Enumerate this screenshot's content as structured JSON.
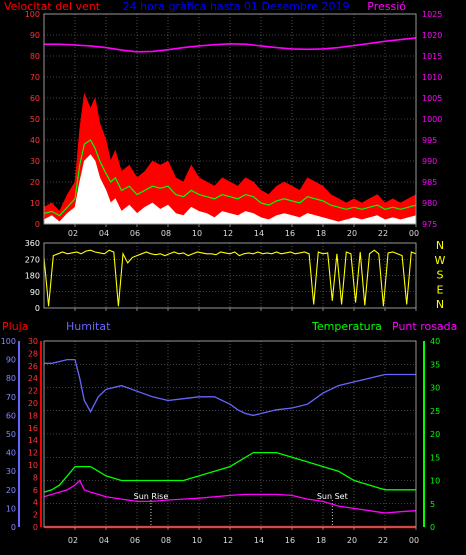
{
  "colors": {
    "wind_gust": "#ff0000",
    "wind_avg": "#00ff00",
    "wind_speed": "#ffffff",
    "pressure": "#ff00ff",
    "wind_dir": "#ffff00",
    "rain": "#ff0000",
    "humidity": "#6666ff",
    "temperature": "#00ff00",
    "dewpoint": "#ff00ff",
    "grid": "#808080",
    "title": "#0000ff"
  },
  "chart_data": [
    {
      "type": "line",
      "title": "24 hora gràfica hasta 01 Desembre 2019",
      "ylabel_left": "Velocitat del vent",
      "ylabel_right": "Pressió",
      "x_ticks": [
        "02",
        "04",
        "06",
        "08",
        "10",
        "12",
        "14",
        "16",
        "18",
        "20",
        "22",
        "00"
      ],
      "x_range": [
        0,
        24
      ],
      "y_left_ticks": [
        "0",
        "10",
        "20",
        "30",
        "40",
        "50",
        "60",
        "70",
        "80",
        "90",
        "100"
      ],
      "y_left_range": [
        0,
        100
      ],
      "y_right_ticks": [
        "975",
        "980",
        "985",
        "990",
        "995",
        "1000",
        "1005",
        "1010",
        "1015",
        "1020",
        "1025"
      ],
      "y_right_range": [
        975,
        1025
      ],
      "series": [
        {
          "key": "gust",
          "axis": "left",
          "x": [
            0,
            0.5,
            1,
            1.5,
            2,
            2.3,
            2.6,
            3,
            3.3,
            3.6,
            4,
            4.3,
            4.6,
            5,
            5.5,
            6,
            6.5,
            7,
            7.5,
            8,
            8.5,
            9,
            9.5,
            10,
            10.5,
            11,
            11.5,
            12,
            12.5,
            13,
            13.5,
            14,
            14.5,
            15,
            15.5,
            16,
            16.5,
            17,
            17.5,
            18,
            18.5,
            19,
            19.5,
            20,
            20.5,
            21,
            21.5,
            22,
            22.5,
            23,
            23.5,
            24
          ],
          "values": [
            8,
            10,
            6,
            14,
            20,
            45,
            62,
            55,
            60,
            48,
            40,
            30,
            35,
            25,
            28,
            22,
            25,
            30,
            28,
            30,
            22,
            20,
            28,
            22,
            20,
            18,
            22,
            20,
            18,
            22,
            20,
            16,
            14,
            18,
            20,
            18,
            16,
            22,
            20,
            18,
            14,
            12,
            10,
            12,
            10,
            12,
            14,
            10,
            12,
            10,
            12,
            14
          ]
        },
        {
          "key": "average",
          "axis": "left",
          "x": [
            0,
            0.5,
            1,
            1.5,
            2,
            2.3,
            2.6,
            3,
            3.3,
            3.6,
            4,
            4.3,
            4.6,
            5,
            5.5,
            6,
            6.5,
            7,
            7.5,
            8,
            8.5,
            9,
            9.5,
            10,
            10.5,
            11,
            11.5,
            12,
            12.5,
            13,
            13.5,
            14,
            14.5,
            15,
            15.5,
            16,
            16.5,
            17,
            17.5,
            18,
            18.5,
            19,
            19.5,
            20,
            20.5,
            21,
            21.5,
            22,
            22.5,
            23,
            23.5,
            24
          ],
          "values": [
            5,
            6,
            4,
            8,
            12,
            28,
            38,
            40,
            36,
            30,
            24,
            20,
            22,
            16,
            18,
            14,
            16,
            18,
            17,
            18,
            14,
            13,
            16,
            14,
            13,
            12,
            14,
            13,
            12,
            14,
            13,
            10,
            9,
            11,
            12,
            11,
            10,
            13,
            12,
            11,
            9,
            8,
            7,
            8,
            7,
            8,
            9,
            7,
            8,
            7,
            8,
            9
          ]
        },
        {
          "key": "speed",
          "axis": "left",
          "x": [
            0,
            0.5,
            1,
            1.5,
            2,
            2.3,
            2.6,
            3,
            3.3,
            3.6,
            4,
            4.3,
            4.6,
            5,
            5.5,
            6,
            6.5,
            7,
            7.5,
            8,
            8.5,
            9,
            9.5,
            10,
            10.5,
            11,
            11.5,
            12,
            12.5,
            13,
            13.5,
            14,
            14.5,
            15,
            15.5,
            16,
            16.5,
            17,
            17.5,
            18,
            18.5,
            19,
            19.5,
            20,
            20.5,
            21,
            21.5,
            22,
            22.5,
            23,
            23.5,
            24
          ],
          "values": [
            2,
            4,
            1,
            5,
            8,
            20,
            30,
            33,
            30,
            22,
            16,
            10,
            12,
            6,
            9,
            5,
            8,
            10,
            7,
            9,
            5,
            4,
            8,
            6,
            5,
            3,
            6,
            5,
            4,
            6,
            5,
            3,
            2,
            4,
            5,
            4,
            3,
            5,
            4,
            3,
            2,
            1,
            2,
            3,
            2,
            3,
            4,
            2,
            3,
            2,
            3,
            4
          ]
        },
        {
          "key": "pressure",
          "axis": "right",
          "x": [
            0,
            1,
            2,
            3,
            4,
            5,
            6,
            7,
            8,
            9,
            10,
            11,
            12,
            13,
            14,
            15,
            16,
            17,
            18,
            19,
            20,
            21,
            22,
            23,
            24
          ],
          "values": [
            1017.8,
            1017.8,
            1017.6,
            1017.4,
            1017.0,
            1016.4,
            1016.0,
            1016.1,
            1016.5,
            1017.0,
            1017.4,
            1017.7,
            1017.9,
            1017.8,
            1017.4,
            1017.0,
            1016.7,
            1016.6,
            1016.7,
            1017.0,
            1017.5,
            1018.0,
            1018.5,
            1018.9,
            1019.3
          ]
        }
      ]
    },
    {
      "type": "scatter",
      "y_ticks": [
        "360",
        "270",
        "180",
        "90",
        "0"
      ],
      "y_range": [
        0,
        360
      ],
      "compass_labels": [
        "N",
        "W",
        "S",
        "E",
        "N"
      ],
      "x_ticks": [
        "02",
        "04",
        "06",
        "08",
        "10",
        "12",
        "14",
        "16",
        "18",
        "20",
        "22",
        "00"
      ],
      "x_range": [
        0,
        24
      ],
      "series": [
        {
          "key": "direction",
          "x": [
            0,
            0.3,
            0.6,
            0.9,
            1.2,
            1.5,
            1.8,
            2.1,
            2.4,
            2.7,
            3.0,
            3.3,
            3.6,
            3.9,
            4.2,
            4.5,
            4.8,
            5.1,
            5.4,
            5.7,
            6.0,
            6.3,
            6.6,
            6.9,
            7.2,
            7.5,
            7.8,
            8.1,
            8.4,
            8.7,
            9.0,
            9.3,
            9.6,
            9.9,
            10.2,
            10.5,
            10.8,
            11.1,
            11.4,
            11.7,
            12.0,
            12.3,
            12.6,
            12.9,
            13.2,
            13.5,
            13.8,
            14.1,
            14.4,
            14.7,
            15.0,
            15.3,
            15.6,
            15.9,
            16.2,
            16.5,
            16.8,
            17.1,
            17.4,
            17.7,
            18.0,
            18.3,
            18.6,
            18.9,
            19.2,
            19.5,
            19.8,
            20.1,
            20.4,
            20.7,
            21.0,
            21.3,
            21.6,
            21.9,
            22.2,
            22.5,
            22.8,
            23.1,
            23.4,
            23.7,
            24.0
          ],
          "values": [
            280,
            10,
            290,
            300,
            310,
            300,
            305,
            310,
            300,
            315,
            320,
            310,
            305,
            300,
            320,
            310,
            10,
            300,
            250,
            280,
            290,
            300,
            310,
            300,
            295,
            300,
            290,
            300,
            310,
            300,
            305,
            290,
            300,
            310,
            305,
            300,
            300,
            295,
            310,
            305,
            300,
            310,
            290,
            300,
            305,
            300,
            310,
            300,
            305,
            300,
            310,
            300,
            305,
            310,
            300,
            305,
            310,
            300,
            20,
            310,
            300,
            305,
            40,
            300,
            20,
            310,
            300,
            30,
            310,
            15,
            300,
            320,
            300,
            10,
            305,
            310,
            300,
            290,
            20,
            310,
            300
          ]
        }
      ]
    },
    {
      "type": "line",
      "ylabel_rain": "Pluja",
      "ylabel_humidity": "Humitat",
      "ylabel_temperature": "Temperatura",
      "ylabel_dewpoint": "Punt rosada",
      "x_ticks": [
        "02",
        "04",
        "06",
        "08",
        "10",
        "12",
        "14",
        "16",
        "18",
        "20",
        "22",
        "00"
      ],
      "x_range": [
        0,
        24
      ],
      "y_humidity_ticks": [
        "0",
        "10",
        "20",
        "30",
        "40",
        "50",
        "60",
        "70",
        "80",
        "90",
        "100"
      ],
      "y_humidity_range": [
        0,
        100
      ],
      "y_rain_ticks": [
        "0",
        "2",
        "4",
        "6",
        "8",
        "10",
        "12",
        "14",
        "16",
        "18",
        "20",
        "22",
        "24",
        "26",
        "28",
        "30"
      ],
      "y_rain_range": [
        0,
        30
      ],
      "y_temp_ticks": [
        "0",
        "5",
        "10",
        "15",
        "20",
        "25",
        "30",
        "35",
        "40"
      ],
      "y_temp_range": [
        0,
        40
      ],
      "annotations": [
        {
          "label": "Sun Rise",
          "x": 6.9
        },
        {
          "label": "Sun Set",
          "x": 18.6
        }
      ],
      "series": [
        {
          "key": "humidity",
          "axis": "humidity",
          "x": [
            0,
            0.5,
            1,
            1.5,
            2,
            2.3,
            2.6,
            3,
            3.5,
            4,
            5,
            6,
            7,
            8,
            9,
            10,
            11,
            12,
            12.5,
            13,
            13.5,
            14,
            15,
            16,
            17,
            18,
            19,
            20,
            21,
            22,
            23,
            24
          ],
          "values": [
            88,
            88,
            89,
            90,
            90,
            80,
            68,
            62,
            70,
            74,
            76,
            73,
            70,
            68,
            69,
            70,
            70,
            66,
            63,
            61,
            60,
            61,
            63,
            64,
            66,
            72,
            76,
            78,
            80,
            82,
            82,
            82
          ]
        },
        {
          "key": "temperature",
          "axis": "temp",
          "x": [
            0,
            0.5,
            1,
            1.5,
            2,
            2.5,
            3,
            3.5,
            4,
            5,
            6,
            7,
            8,
            9,
            10,
            11,
            12,
            12.5,
            13,
            13.5,
            14,
            15,
            16,
            17,
            18,
            19,
            20,
            21,
            22,
            23,
            24
          ],
          "values": [
            7.5,
            8,
            9,
            11,
            13,
            13,
            13,
            12,
            11,
            10,
            10,
            10,
            10,
            10,
            11,
            12,
            13,
            14,
            15,
            16,
            16,
            16,
            15,
            14,
            13,
            12,
            10,
            9,
            8,
            8,
            8
          ]
        },
        {
          "key": "dewpoint",
          "axis": "temp",
          "x": [
            0,
            0.5,
            1,
            1.5,
            2,
            2.3,
            2.6,
            3,
            3.5,
            4,
            5,
            6,
            7,
            8,
            9,
            10,
            11,
            12,
            13,
            14,
            15,
            16,
            17,
            18,
            19,
            20,
            21,
            22,
            23,
            24
          ],
          "values": [
            6.5,
            7,
            7.5,
            8,
            9,
            10,
            8,
            7.5,
            7,
            6.5,
            6,
            5.5,
            5.5,
            5.8,
            6,
            6.2,
            6.5,
            6.8,
            7,
            7,
            7,
            6.8,
            6,
            5.5,
            4.5,
            4,
            3.5,
            3,
            3.3,
            3.5
          ]
        },
        {
          "key": "rain",
          "axis": "rain",
          "x": [
            0,
            24
          ],
          "values": [
            0,
            0
          ]
        }
      ]
    }
  ]
}
